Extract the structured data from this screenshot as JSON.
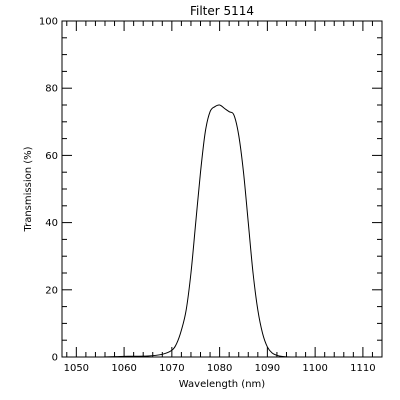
{
  "chart_data": {
    "type": "line",
    "title": "Filter 5114",
    "xlabel": "Wavelength (nm)",
    "ylabel": "Transmission (%)",
    "xlim": [
      1047,
      1114
    ],
    "ylim": [
      0,
      100
    ],
    "x_ticks": [
      1050,
      1060,
      1070,
      1080,
      1090,
      1100,
      1110
    ],
    "x_tick_labels": [
      "1050",
      "1060",
      "1070",
      "1080",
      "1090",
      "1100",
      "1110"
    ],
    "y_ticks": [
      0,
      20,
      40,
      60,
      80,
      100
    ],
    "y_tick_labels": [
      "0",
      "20",
      "40",
      "60",
      "80",
      "100"
    ],
    "x_minor_step": 2,
    "y_minor_step": 5,
    "grid": false,
    "legend": "none",
    "line_color": "#000000",
    "series": [
      {
        "x": [
          1048,
          1055,
          1060,
          1065,
          1068,
          1070,
          1071,
          1072,
          1073,
          1074,
          1075,
          1076,
          1077,
          1078,
          1079,
          1080,
          1081,
          1082,
          1083,
          1084,
          1085,
          1086,
          1087,
          1088,
          1089,
          1090,
          1091,
          1092,
          1093,
          1095,
          1100,
          1110,
          1113
        ],
        "y": [
          0,
          0,
          0.2,
          0.3,
          0.8,
          2,
          4,
          8,
          14,
          25,
          40,
          55,
          67,
          73,
          74.5,
          75,
          74,
          73,
          72,
          66,
          55,
          40,
          25,
          14,
          7,
          3,
          1.2,
          0.5,
          0.2,
          0,
          0,
          0,
          0
        ]
      }
    ]
  }
}
